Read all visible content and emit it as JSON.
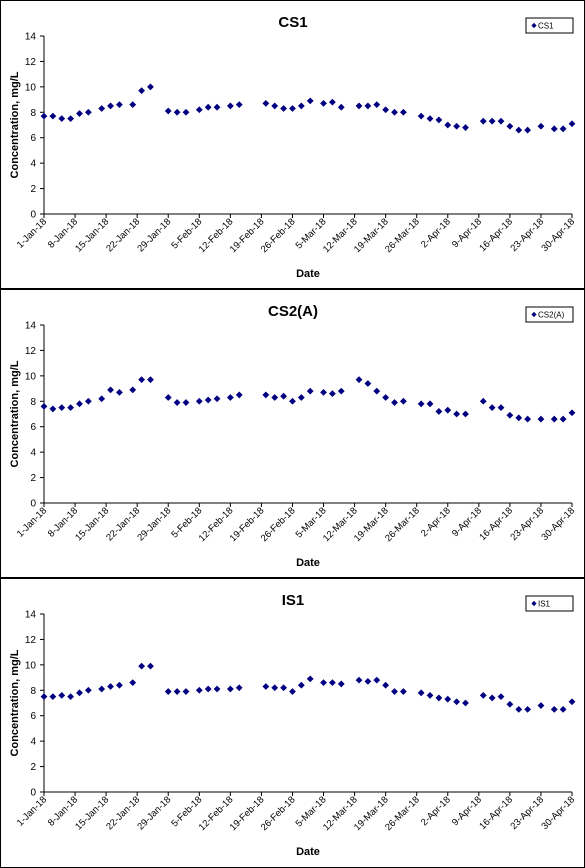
{
  "chart_data": [
    {
      "type": "scatter",
      "title": "CS1",
      "xlabel": "Date",
      "ylabel": "Concentration, mg/L",
      "ylim": [
        0,
        14
      ],
      "yticks": [
        0,
        2,
        4,
        6,
        8,
        10,
        12,
        14
      ],
      "xlim": [
        "2018-01-01",
        "2018-04-30"
      ],
      "xtick_labels": [
        "1-Jan-18",
        "8-Jan-18",
        "15-Jan-18",
        "22-Jan-18",
        "29-Jan-18",
        "5-Feb-18",
        "12-Feb-18",
        "19-Feb-18",
        "26-Feb-18",
        "5-Mar-18",
        "12-Mar-18",
        "19-Mar-18",
        "26-Mar-18",
        "2-Apr-18",
        "9-Apr-18",
        "16-Apr-18",
        "23-Apr-18",
        "30-Apr-18"
      ],
      "xtick_dates": [
        "2018-01-01",
        "2018-01-08",
        "2018-01-15",
        "2018-01-22",
        "2018-01-29",
        "2018-02-05",
        "2018-02-12",
        "2018-02-19",
        "2018-02-26",
        "2018-03-05",
        "2018-03-12",
        "2018-03-19",
        "2018-03-26",
        "2018-04-02",
        "2018-04-09",
        "2018-04-16",
        "2018-04-23",
        "2018-04-30"
      ],
      "legend_position": "top-right",
      "marker": "diamond",
      "color": "#000080",
      "series": [
        {
          "name": "CS1",
          "points": [
            [
              "2018-01-01",
              7.7
            ],
            [
              "2018-01-03",
              7.7
            ],
            [
              "2018-01-05",
              7.5
            ],
            [
              "2018-01-07",
              7.5
            ],
            [
              "2018-01-09",
              7.9
            ],
            [
              "2018-01-11",
              8.0
            ],
            [
              "2018-01-14",
              8.3
            ],
            [
              "2018-01-16",
              8.5
            ],
            [
              "2018-01-18",
              8.6
            ],
            [
              "2018-01-21",
              8.6
            ],
            [
              "2018-01-23",
              9.7
            ],
            [
              "2018-01-25",
              10.0
            ],
            [
              "2018-01-29",
              8.1
            ],
            [
              "2018-01-31",
              8.0
            ],
            [
              "2018-02-02",
              8.0
            ],
            [
              "2018-02-05",
              8.2
            ],
            [
              "2018-02-07",
              8.4
            ],
            [
              "2018-02-09",
              8.4
            ],
            [
              "2018-02-12",
              8.5
            ],
            [
              "2018-02-14",
              8.6
            ],
            [
              "2018-02-20",
              8.7
            ],
            [
              "2018-02-22",
              8.5
            ],
            [
              "2018-02-24",
              8.3
            ],
            [
              "2018-02-26",
              8.3
            ],
            [
              "2018-02-28",
              8.5
            ],
            [
              "2018-03-02",
              8.9
            ],
            [
              "2018-03-05",
              8.7
            ],
            [
              "2018-03-07",
              8.8
            ],
            [
              "2018-03-09",
              8.4
            ],
            [
              "2018-03-13",
              8.5
            ],
            [
              "2018-03-15",
              8.5
            ],
            [
              "2018-03-17",
              8.6
            ],
            [
              "2018-03-19",
              8.2
            ],
            [
              "2018-03-21",
              8.0
            ],
            [
              "2018-03-23",
              8.0
            ],
            [
              "2018-03-27",
              7.7
            ],
            [
              "2018-03-29",
              7.5
            ],
            [
              "2018-03-31",
              7.4
            ],
            [
              "2018-04-02",
              7.0
            ],
            [
              "2018-04-04",
              6.9
            ],
            [
              "2018-04-06",
              6.8
            ],
            [
              "2018-04-10",
              7.3
            ],
            [
              "2018-04-12",
              7.3
            ],
            [
              "2018-04-14",
              7.3
            ],
            [
              "2018-04-16",
              6.9
            ],
            [
              "2018-04-18",
              6.6
            ],
            [
              "2018-04-20",
              6.6
            ],
            [
              "2018-04-23",
              6.9
            ],
            [
              "2018-04-26",
              6.7
            ],
            [
              "2018-04-28",
              6.7
            ],
            [
              "2018-04-30",
              7.1
            ]
          ]
        }
      ]
    },
    {
      "type": "scatter",
      "title": "CS2(A)",
      "xlabel": "Date",
      "ylabel": "Concentration, mg/L",
      "ylim": [
        0,
        14
      ],
      "yticks": [
        0,
        2,
        4,
        6,
        8,
        10,
        12,
        14
      ],
      "xlim": [
        "2018-01-01",
        "2018-04-30"
      ],
      "xtick_labels": [
        "1-Jan-18",
        "8-Jan-18",
        "15-Jan-18",
        "22-Jan-18",
        "29-Jan-18",
        "5-Feb-18",
        "12-Feb-18",
        "19-Feb-18",
        "26-Feb-18",
        "5-Mar-18",
        "12-Mar-18",
        "19-Mar-18",
        "26-Mar-18",
        "2-Apr-18",
        "9-Apr-18",
        "16-Apr-18",
        "23-Apr-18",
        "30-Apr-18"
      ],
      "xtick_dates": [
        "2018-01-01",
        "2018-01-08",
        "2018-01-15",
        "2018-01-22",
        "2018-01-29",
        "2018-02-05",
        "2018-02-12",
        "2018-02-19",
        "2018-02-26",
        "2018-03-05",
        "2018-03-12",
        "2018-03-19",
        "2018-03-26",
        "2018-04-02",
        "2018-04-09",
        "2018-04-16",
        "2018-04-23",
        "2018-04-30"
      ],
      "legend_position": "top-right",
      "marker": "diamond",
      "color": "#000080",
      "series": [
        {
          "name": "CS2(A)",
          "points": [
            [
              "2018-01-01",
              7.6
            ],
            [
              "2018-01-03",
              7.4
            ],
            [
              "2018-01-05",
              7.5
            ],
            [
              "2018-01-07",
              7.5
            ],
            [
              "2018-01-09",
              7.8
            ],
            [
              "2018-01-11",
              8.0
            ],
            [
              "2018-01-14",
              8.2
            ],
            [
              "2018-01-16",
              8.9
            ],
            [
              "2018-01-18",
              8.7
            ],
            [
              "2018-01-21",
              8.9
            ],
            [
              "2018-01-23",
              9.7
            ],
            [
              "2018-01-25",
              9.7
            ],
            [
              "2018-01-29",
              8.3
            ],
            [
              "2018-01-31",
              7.9
            ],
            [
              "2018-02-02",
              7.9
            ],
            [
              "2018-02-05",
              8.0
            ],
            [
              "2018-02-07",
              8.1
            ],
            [
              "2018-02-09",
              8.2
            ],
            [
              "2018-02-12",
              8.3
            ],
            [
              "2018-02-14",
              8.5
            ],
            [
              "2018-02-20",
              8.5
            ],
            [
              "2018-02-22",
              8.3
            ],
            [
              "2018-02-24",
              8.4
            ],
            [
              "2018-02-26",
              8.0
            ],
            [
              "2018-02-28",
              8.3
            ],
            [
              "2018-03-02",
              8.8
            ],
            [
              "2018-03-05",
              8.7
            ],
            [
              "2018-03-07",
              8.6
            ],
            [
              "2018-03-09",
              8.8
            ],
            [
              "2018-03-13",
              9.7
            ],
            [
              "2018-03-15",
              9.4
            ],
            [
              "2018-03-17",
              8.8
            ],
            [
              "2018-03-19",
              8.3
            ],
            [
              "2018-03-21",
              7.9
            ],
            [
              "2018-03-23",
              8.0
            ],
            [
              "2018-03-27",
              7.8
            ],
            [
              "2018-03-29",
              7.8
            ],
            [
              "2018-03-31",
              7.2
            ],
            [
              "2018-04-02",
              7.3
            ],
            [
              "2018-04-04",
              7.0
            ],
            [
              "2018-04-06",
              7.0
            ],
            [
              "2018-04-10",
              8.0
            ],
            [
              "2018-04-12",
              7.5
            ],
            [
              "2018-04-14",
              7.5
            ],
            [
              "2018-04-16",
              6.9
            ],
            [
              "2018-04-18",
              6.7
            ],
            [
              "2018-04-20",
              6.6
            ],
            [
              "2018-04-23",
              6.6
            ],
            [
              "2018-04-26",
              6.6
            ],
            [
              "2018-04-28",
              6.6
            ],
            [
              "2018-04-30",
              7.1
            ]
          ]
        }
      ]
    },
    {
      "type": "scatter",
      "title": "IS1",
      "xlabel": "Date",
      "ylabel": "Concentration, mg/L",
      "ylim": [
        0,
        14
      ],
      "yticks": [
        0,
        2,
        4,
        6,
        8,
        10,
        12,
        14
      ],
      "xlim": [
        "2018-01-01",
        "2018-04-30"
      ],
      "xtick_labels": [
        "1-Jan-18",
        "8-Jan-18",
        "15-Jan-18",
        "22-Jan-18",
        "29-Jan-18",
        "5-Feb-18",
        "12-Feb-18",
        "19-Feb-18",
        "26-Feb-18",
        "5-Mar-18",
        "12-Mar-18",
        "19-Mar-18",
        "26-Mar-18",
        "2-Apr-18",
        "9-Apr-18",
        "16-Apr-18",
        "23-Apr-18",
        "30-Apr-18"
      ],
      "xtick_dates": [
        "2018-01-01",
        "2018-01-08",
        "2018-01-15",
        "2018-01-22",
        "2018-01-29",
        "2018-02-05",
        "2018-02-12",
        "2018-02-19",
        "2018-02-26",
        "2018-03-05",
        "2018-03-12",
        "2018-03-19",
        "2018-03-26",
        "2018-04-02",
        "2018-04-09",
        "2018-04-16",
        "2018-04-23",
        "2018-04-30"
      ],
      "legend_position": "top-right",
      "marker": "diamond",
      "color": "#000080",
      "series": [
        {
          "name": "IS1",
          "points": [
            [
              "2018-01-01",
              7.5
            ],
            [
              "2018-01-03",
              7.5
            ],
            [
              "2018-01-05",
              7.6
            ],
            [
              "2018-01-07",
              7.5
            ],
            [
              "2018-01-09",
              7.8
            ],
            [
              "2018-01-11",
              8.0
            ],
            [
              "2018-01-14",
              8.1
            ],
            [
              "2018-01-16",
              8.3
            ],
            [
              "2018-01-18",
              8.4
            ],
            [
              "2018-01-21",
              8.6
            ],
            [
              "2018-01-23",
              9.9
            ],
            [
              "2018-01-25",
              9.9
            ],
            [
              "2018-01-29",
              7.9
            ],
            [
              "2018-01-31",
              7.9
            ],
            [
              "2018-02-02",
              7.9
            ],
            [
              "2018-02-05",
              8.0
            ],
            [
              "2018-02-07",
              8.1
            ],
            [
              "2018-02-09",
              8.1
            ],
            [
              "2018-02-12",
              8.1
            ],
            [
              "2018-02-14",
              8.2
            ],
            [
              "2018-02-20",
              8.3
            ],
            [
              "2018-02-22",
              8.2
            ],
            [
              "2018-02-24",
              8.2
            ],
            [
              "2018-02-26",
              7.9
            ],
            [
              "2018-02-28",
              8.4
            ],
            [
              "2018-03-02",
              8.9
            ],
            [
              "2018-03-05",
              8.6
            ],
            [
              "2018-03-07",
              8.6
            ],
            [
              "2018-03-09",
              8.5
            ],
            [
              "2018-03-13",
              8.8
            ],
            [
              "2018-03-15",
              8.7
            ],
            [
              "2018-03-17",
              8.8
            ],
            [
              "2018-03-19",
              8.4
            ],
            [
              "2018-03-21",
              7.9
            ],
            [
              "2018-03-23",
              7.9
            ],
            [
              "2018-03-27",
              7.8
            ],
            [
              "2018-03-29",
              7.6
            ],
            [
              "2018-03-31",
              7.4
            ],
            [
              "2018-04-02",
              7.3
            ],
            [
              "2018-04-04",
              7.1
            ],
            [
              "2018-04-06",
              7.0
            ],
            [
              "2018-04-10",
              7.6
            ],
            [
              "2018-04-12",
              7.4
            ],
            [
              "2018-04-14",
              7.5
            ],
            [
              "2018-04-16",
              6.9
            ],
            [
              "2018-04-18",
              6.5
            ],
            [
              "2018-04-20",
              6.5
            ],
            [
              "2018-04-23",
              6.8
            ],
            [
              "2018-04-26",
              6.5
            ],
            [
              "2018-04-28",
              6.5
            ],
            [
              "2018-04-30",
              7.1
            ]
          ]
        }
      ]
    }
  ]
}
